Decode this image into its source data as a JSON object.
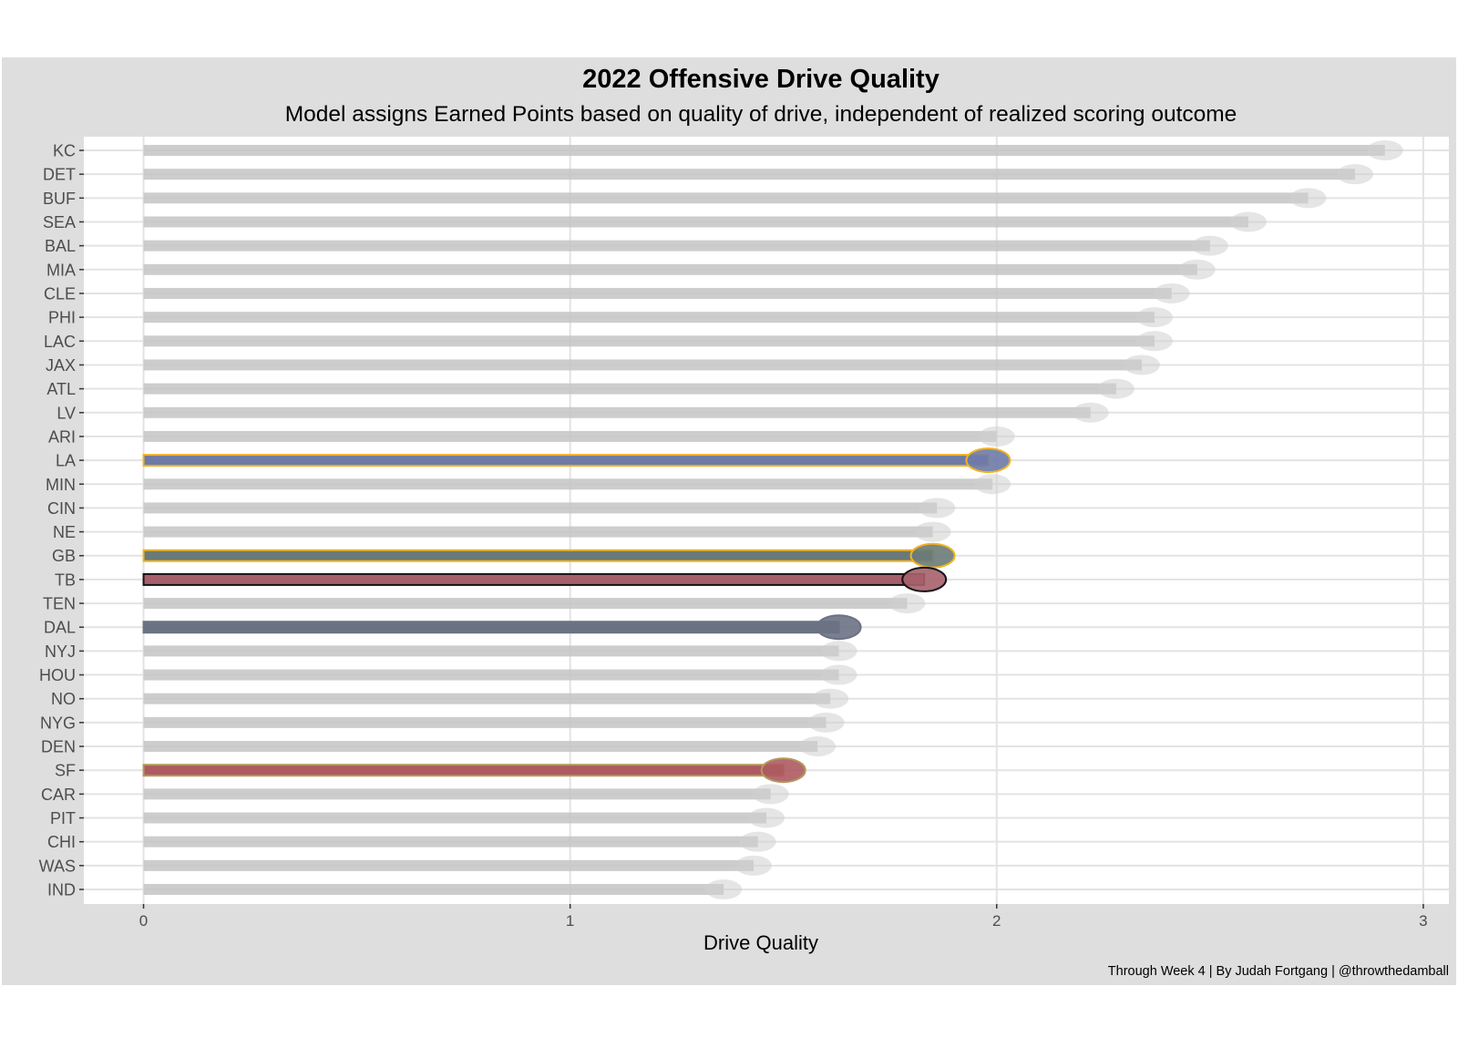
{
  "chart_data": {
    "type": "bar",
    "orientation": "horizontal",
    "title": "2022 Offensive Drive Quality",
    "subtitle": "Model assigns Earned Points based on quality of drive, independent of realized scoring outcome",
    "xlabel": "Drive Quality",
    "ylabel": "",
    "caption": "Through Week 4 | By Judah Fortgang | @throwthedamball",
    "xlim": [
      -0.14,
      3.06
    ],
    "xticks": [
      0,
      1,
      2,
      3
    ],
    "grid": true,
    "legend": "none",
    "categories": [
      "KC",
      "DET",
      "BUF",
      "SEA",
      "BAL",
      "MIA",
      "CLE",
      "PHI",
      "LAC",
      "JAX",
      "ATL",
      "LV",
      "ARI",
      "LA",
      "MIN",
      "CIN",
      "NE",
      "GB",
      "TB",
      "TEN",
      "DAL",
      "NYJ",
      "HOU",
      "NO",
      "NYG",
      "DEN",
      "SF",
      "CAR",
      "PIT",
      "CHI",
      "WAS",
      "IND"
    ],
    "values": [
      2.91,
      2.84,
      2.73,
      2.59,
      2.5,
      2.47,
      2.41,
      2.37,
      2.37,
      2.34,
      2.28,
      2.22,
      2.0,
      1.98,
      1.99,
      1.86,
      1.85,
      1.85,
      1.83,
      1.79,
      1.63,
      1.63,
      1.63,
      1.61,
      1.6,
      1.58,
      1.5,
      1.47,
      1.46,
      1.44,
      1.43,
      1.36
    ],
    "highlighted": [
      {
        "team": "LA",
        "fill": "#6e7aa8",
        "border": "#f0b323"
      },
      {
        "team": "GB",
        "fill": "#6a7a78",
        "border": "#f0b323"
      },
      {
        "team": "TB",
        "fill": "#a6606b",
        "border": "#141414"
      },
      {
        "team": "DAL",
        "fill": "#6b7284",
        "border": "#6b7284"
      },
      {
        "team": "SF",
        "fill": "#ad5a60",
        "border": "#b3995d"
      }
    ],
    "colors": {
      "default_bar": "#c4c4c4",
      "panel": "#ffffff",
      "background": "#dedede",
      "gridline": "#e3e3e3"
    }
  }
}
